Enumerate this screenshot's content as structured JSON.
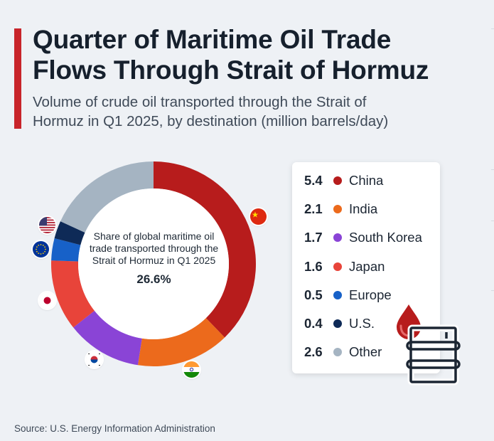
{
  "title_lines": [
    "Quarter of Maritime Oil Trade",
    "Flows Through Strait of Hormuz"
  ],
  "subtitle_lines": [
    "Volume of crude oil transported through the Strait of",
    "Hormuz in Q1 2025, by destination (million barrels/day)"
  ],
  "center": {
    "label": "Share of global maritime oil trade transported through the Strait of Hormuz in Q1 2025",
    "value": "26.6%"
  },
  "source": "Source: U.S. Energy Information Administration",
  "chart_data": {
    "type": "pie",
    "variant": "donut",
    "title": "Quarter of Maritime Oil Trade Flows Through Strait of Hormuz",
    "unit": "million barrels/day",
    "categories": [
      "China",
      "India",
      "South Korea",
      "Japan",
      "Europe",
      "U.S.",
      "Other"
    ],
    "values": [
      5.4,
      2.1,
      1.7,
      1.6,
      0.5,
      0.4,
      2.6
    ],
    "value_labels": [
      "5.4",
      "2.1",
      "1.7",
      "1.6",
      "0.5",
      "0.4",
      "2.6"
    ],
    "colors": [
      "#b71c1c",
      "#ec6a1c",
      "#8a44d6",
      "#e8443a",
      "#1761c8",
      "#0e2a57",
      "#a5b4c2"
    ],
    "legend_position": "right"
  },
  "flags": [
    {
      "country": "China",
      "icon": "china-flag-icon"
    },
    {
      "country": "India",
      "icon": "india-flag-icon"
    },
    {
      "country": "South Korea",
      "icon": "south-korea-flag-icon"
    },
    {
      "country": "Japan",
      "icon": "japan-flag-icon"
    },
    {
      "country": "Europe",
      "icon": "eu-flag-icon"
    },
    {
      "country": "U.S.",
      "icon": "us-flag-icon"
    }
  ]
}
